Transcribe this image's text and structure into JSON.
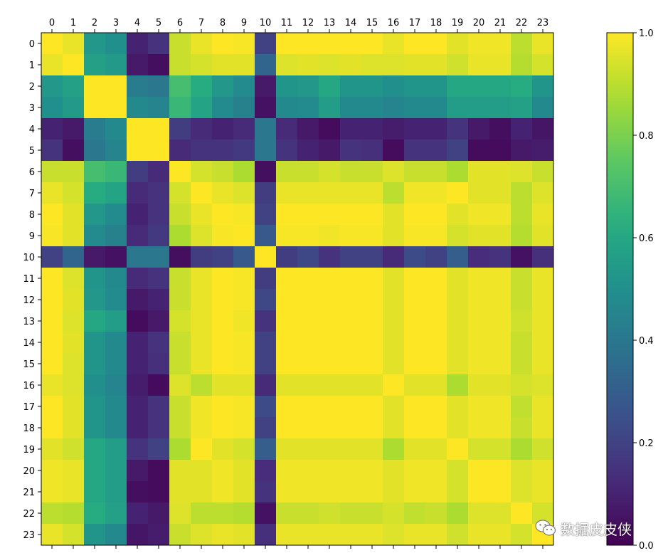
{
  "chart_data": {
    "type": "heatmap",
    "title": "",
    "xlabel": "",
    "ylabel": "",
    "x_categories": [
      "0",
      "1",
      "2",
      "3",
      "4",
      "5",
      "6",
      "7",
      "8",
      "9",
      "10",
      "11",
      "12",
      "13",
      "14",
      "15",
      "16",
      "17",
      "18",
      "19",
      "20",
      "21",
      "22",
      "23"
    ],
    "y_categories": [
      "0",
      "1",
      "2",
      "3",
      "4",
      "5",
      "6",
      "7",
      "8",
      "9",
      "10",
      "11",
      "12",
      "13",
      "14",
      "15",
      "16",
      "17",
      "18",
      "19",
      "20",
      "21",
      "22",
      "23"
    ],
    "colormap": "viridis",
    "colorbar": {
      "range": [
        0.0,
        1.0
      ],
      "ticks": [
        "0.0",
        "0.2",
        "0.4",
        "0.6",
        "0.8",
        "1.0"
      ]
    },
    "values": [
      [
        1.0,
        0.97,
        0.53,
        0.5,
        0.1,
        0.15,
        0.92,
        0.97,
        1.0,
        0.99,
        0.2,
        1.0,
        1.0,
        1.0,
        1.0,
        1.0,
        0.97,
        1.0,
        1.0,
        0.96,
        0.98,
        0.98,
        0.9,
        0.97
      ],
      [
        0.97,
        1.0,
        0.57,
        0.54,
        0.07,
        0.04,
        0.92,
        0.94,
        0.96,
        0.96,
        0.33,
        0.95,
        0.96,
        0.95,
        0.96,
        0.95,
        0.95,
        0.96,
        0.96,
        0.93,
        0.97,
        0.97,
        0.89,
        0.94
      ],
      [
        0.53,
        0.57,
        1.0,
        1.0,
        0.42,
        0.4,
        0.7,
        0.62,
        0.53,
        0.48,
        0.07,
        0.52,
        0.53,
        0.6,
        0.52,
        0.52,
        0.5,
        0.52,
        0.52,
        0.6,
        0.6,
        0.6,
        0.62,
        0.52
      ],
      [
        0.5,
        0.54,
        1.0,
        1.0,
        0.47,
        0.45,
        0.67,
        0.58,
        0.48,
        0.44,
        0.05,
        0.47,
        0.48,
        0.55,
        0.47,
        0.47,
        0.45,
        0.47,
        0.47,
        0.55,
        0.55,
        0.55,
        0.57,
        0.47
      ],
      [
        0.1,
        0.07,
        0.42,
        0.47,
        1.0,
        1.0,
        0.18,
        0.12,
        0.1,
        0.12,
        0.4,
        0.12,
        0.07,
        0.03,
        0.1,
        0.1,
        0.08,
        0.1,
        0.1,
        0.15,
        0.07,
        0.04,
        0.1,
        0.06
      ],
      [
        0.15,
        0.04,
        0.4,
        0.45,
        1.0,
        1.0,
        0.12,
        0.15,
        0.15,
        0.17,
        0.4,
        0.15,
        0.1,
        0.07,
        0.15,
        0.14,
        0.03,
        0.15,
        0.15,
        0.2,
        0.03,
        0.03,
        0.07,
        0.08
      ],
      [
        0.92,
        0.92,
        0.7,
        0.67,
        0.18,
        0.12,
        1.0,
        0.94,
        0.92,
        0.88,
        0.04,
        0.92,
        0.92,
        0.94,
        0.92,
        0.92,
        0.95,
        0.92,
        0.92,
        0.88,
        0.96,
        0.96,
        0.95,
        0.92
      ],
      [
        0.97,
        0.94,
        0.62,
        0.58,
        0.12,
        0.15,
        0.94,
        1.0,
        0.97,
        0.95,
        0.18,
        0.97,
        0.97,
        0.97,
        0.97,
        0.97,
        0.9,
        0.98,
        0.98,
        1.0,
        0.96,
        0.96,
        0.9,
        0.95
      ],
      [
        1.0,
        0.96,
        0.53,
        0.48,
        0.1,
        0.15,
        0.92,
        0.97,
        1.0,
        0.99,
        0.2,
        1.0,
        1.0,
        1.0,
        1.0,
        1.0,
        0.96,
        1.0,
        1.0,
        0.96,
        0.98,
        0.98,
        0.9,
        0.97
      ],
      [
        0.99,
        0.96,
        0.48,
        0.44,
        0.12,
        0.17,
        0.88,
        0.95,
        0.99,
        1.0,
        0.28,
        0.99,
        0.99,
        0.98,
        0.99,
        0.99,
        0.96,
        0.99,
        0.99,
        0.94,
        0.96,
        0.96,
        0.89,
        0.96
      ],
      [
        0.2,
        0.33,
        0.07,
        0.05,
        0.4,
        0.4,
        0.04,
        0.18,
        0.2,
        0.28,
        1.0,
        0.18,
        0.22,
        0.15,
        0.2,
        0.2,
        0.12,
        0.23,
        0.2,
        0.3,
        0.13,
        0.15,
        0.05,
        0.14
      ],
      [
        1.0,
        0.95,
        0.52,
        0.47,
        0.12,
        0.15,
        0.92,
        0.97,
        1.0,
        0.99,
        0.18,
        1.0,
        1.0,
        1.0,
        1.0,
        1.0,
        0.96,
        1.0,
        1.0,
        0.96,
        0.98,
        0.98,
        0.92,
        0.97
      ],
      [
        1.0,
        0.96,
        0.53,
        0.48,
        0.07,
        0.1,
        0.92,
        0.97,
        1.0,
        0.99,
        0.22,
        1.0,
        1.0,
        1.0,
        1.0,
        1.0,
        0.96,
        1.0,
        1.0,
        0.96,
        0.98,
        0.98,
        0.92,
        0.97
      ],
      [
        1.0,
        0.95,
        0.6,
        0.55,
        0.03,
        0.07,
        0.94,
        0.97,
        1.0,
        0.98,
        0.15,
        1.0,
        1.0,
        1.0,
        1.0,
        1.0,
        0.96,
        1.0,
        1.0,
        0.96,
        0.98,
        0.98,
        0.93,
        0.97
      ],
      [
        1.0,
        0.96,
        0.52,
        0.47,
        0.1,
        0.15,
        0.92,
        0.97,
        1.0,
        0.99,
        0.2,
        1.0,
        1.0,
        1.0,
        1.0,
        1.0,
        0.96,
        1.0,
        1.0,
        0.96,
        0.98,
        0.98,
        0.92,
        0.97
      ],
      [
        1.0,
        0.95,
        0.52,
        0.47,
        0.1,
        0.14,
        0.92,
        0.97,
        1.0,
        0.99,
        0.2,
        1.0,
        1.0,
        1.0,
        1.0,
        1.0,
        0.96,
        1.0,
        1.0,
        0.96,
        0.98,
        0.98,
        0.92,
        0.97
      ],
      [
        0.97,
        0.95,
        0.5,
        0.45,
        0.08,
        0.03,
        0.95,
        0.9,
        0.96,
        0.96,
        0.12,
        0.96,
        0.96,
        0.96,
        0.96,
        0.96,
        1.0,
        0.96,
        0.96,
        0.88,
        0.96,
        0.96,
        0.94,
        0.95
      ],
      [
        1.0,
        0.96,
        0.52,
        0.47,
        0.1,
        0.15,
        0.92,
        0.98,
        1.0,
        0.99,
        0.23,
        1.0,
        1.0,
        1.0,
        1.0,
        1.0,
        0.96,
        1.0,
        1.0,
        0.96,
        0.98,
        0.98,
        0.91,
        0.97
      ],
      [
        1.0,
        0.96,
        0.52,
        0.47,
        0.1,
        0.15,
        0.92,
        0.98,
        1.0,
        0.99,
        0.2,
        1.0,
        1.0,
        1.0,
        1.0,
        1.0,
        0.96,
        1.0,
        1.0,
        0.96,
        0.98,
        0.98,
        0.92,
        0.97
      ],
      [
        0.96,
        0.93,
        0.6,
        0.55,
        0.15,
        0.2,
        0.88,
        1.0,
        0.96,
        0.94,
        0.3,
        0.96,
        0.96,
        0.96,
        0.96,
        0.96,
        0.88,
        0.96,
        0.96,
        1.0,
        0.94,
        0.94,
        0.88,
        0.93
      ],
      [
        0.98,
        0.97,
        0.6,
        0.55,
        0.07,
        0.03,
        0.96,
        0.96,
        0.98,
        0.96,
        0.13,
        0.98,
        0.98,
        0.98,
        0.98,
        0.98,
        0.96,
        0.98,
        0.98,
        0.94,
        1.0,
        1.0,
        0.95,
        0.97
      ],
      [
        0.98,
        0.97,
        0.6,
        0.55,
        0.04,
        0.03,
        0.96,
        0.96,
        0.98,
        0.96,
        0.15,
        0.98,
        0.98,
        0.98,
        0.98,
        0.98,
        0.96,
        0.98,
        0.98,
        0.94,
        1.0,
        1.0,
        0.95,
        0.97
      ],
      [
        0.9,
        0.89,
        0.62,
        0.57,
        0.1,
        0.07,
        0.95,
        0.9,
        0.9,
        0.89,
        0.05,
        0.92,
        0.92,
        0.93,
        0.92,
        0.92,
        0.94,
        0.91,
        0.92,
        0.88,
        0.95,
        0.95,
        1.0,
        0.94
      ],
      [
        0.97,
        0.94,
        0.52,
        0.47,
        0.06,
        0.08,
        0.92,
        0.95,
        0.97,
        0.96,
        0.14,
        0.97,
        0.97,
        0.97,
        0.97,
        0.97,
        0.95,
        0.97,
        0.97,
        0.93,
        0.97,
        0.97,
        0.94,
        1.0
      ]
    ]
  },
  "watermark": {
    "icon": "wechat-icon",
    "text": "数据皮皮侠"
  }
}
